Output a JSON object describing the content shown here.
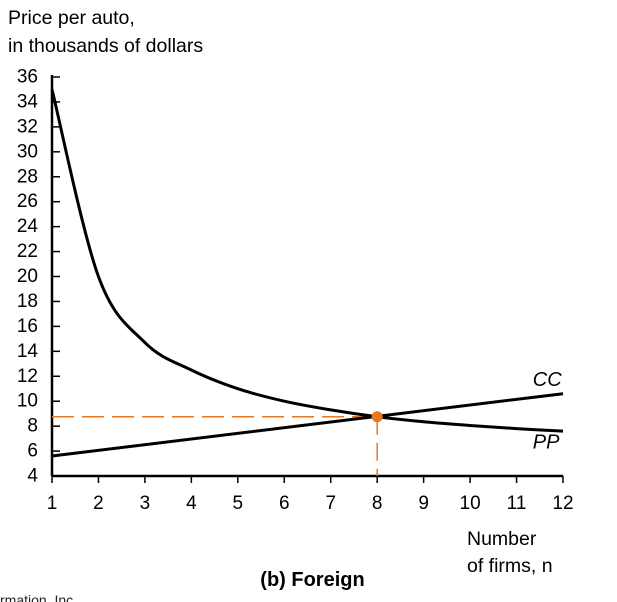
{
  "chart_data": {
    "type": "line",
    "caption": "(b) Foreign",
    "ylabel_lines": [
      "Price per auto,",
      "in thousands of dollars"
    ],
    "xlabel_lines": [
      "Number",
      "of firms, n"
    ],
    "xlim": [
      1,
      12
    ],
    "ylim": [
      4,
      36
    ],
    "x_ticks": [
      1,
      2,
      3,
      4,
      5,
      6,
      7,
      8,
      9,
      10,
      11,
      12
    ],
    "y_ticks": [
      4,
      6,
      8,
      10,
      12,
      14,
      16,
      18,
      20,
      22,
      24,
      26,
      28,
      30,
      32,
      34,
      36
    ],
    "grid": false,
    "series": [
      {
        "name": "CC",
        "color": "#000000",
        "x": [
          1,
          2,
          3,
          4,
          5,
          6,
          7,
          8,
          9,
          10,
          11,
          12
        ],
        "y": [
          35.0,
          20.0,
          14.7,
          12.5,
          11.0,
          10.0,
          9.3,
          8.75,
          8.35,
          8.05,
          7.8,
          7.6
        ]
      },
      {
        "name": "PP",
        "color": "#000000",
        "x": [
          1,
          12
        ],
        "y": [
          5.6,
          10.6
        ]
      }
    ],
    "equilibrium": {
      "x": 8,
      "y": 8.75,
      "color": "#e87722"
    },
    "cutoff_text": "rmation, Inc."
  }
}
